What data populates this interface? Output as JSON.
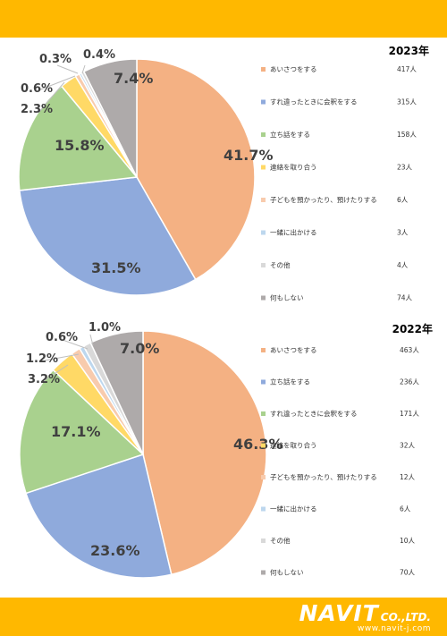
{
  "theme": {
    "accent": "#ffb800",
    "bg": "#ffffff"
  },
  "chart_data": [
    {
      "type": "pie",
      "title": "2023年",
      "slices": [
        {
          "label": "あいさつをする",
          "count": "417人",
          "percent": 41.7,
          "pct_label": "41.7%",
          "color": "#f4b183"
        },
        {
          "label": "すれ違ったときに会釈をする",
          "count": "315人",
          "percent": 31.5,
          "pct_label": "31.5%",
          "color": "#8faadc"
        },
        {
          "label": "立ち話をする",
          "count": "158人",
          "percent": 15.8,
          "pct_label": "15.8%",
          "color": "#a9d18e"
        },
        {
          "label": "連絡を取り合う",
          "count": "23人",
          "percent": 2.3,
          "pct_label": "2.3%",
          "color": "#ffd966"
        },
        {
          "label": "子どもを預かったり、預けたりする",
          "count": "6人",
          "percent": 0.6,
          "pct_label": "0.6%",
          "color": "#f8cbad"
        },
        {
          "label": "一緒に出かける",
          "count": "3人",
          "percent": 0.3,
          "pct_label": "0.3%",
          "color": "#bdd7ee"
        },
        {
          "label": "その他",
          "count": "4人",
          "percent": 0.4,
          "pct_label": "0.4%",
          "color": "#d9d9d9"
        },
        {
          "label": "何もしない",
          "count": "74人",
          "percent": 7.4,
          "pct_label": "7.4%",
          "color": "#aeaaaa"
        }
      ]
    },
    {
      "type": "pie",
      "title": "2022年",
      "slices": [
        {
          "label": "あいさつをする",
          "count": "463人",
          "percent": 46.3,
          "pct_label": "46.3%",
          "color": "#f4b183"
        },
        {
          "label": "立ち話をする",
          "count": "236人",
          "percent": 23.6,
          "pct_label": "23.6%",
          "color": "#8faadc"
        },
        {
          "label": "すれ違ったときに会釈をする",
          "count": "171人",
          "percent": 17.1,
          "pct_label": "17.1%",
          "color": "#a9d18e"
        },
        {
          "label": "連絡を取り合う",
          "count": "32人",
          "percent": 3.2,
          "pct_label": "3.2%",
          "color": "#ffd966"
        },
        {
          "label": "子どもを預かったり、預けたりする",
          "count": "12人",
          "percent": 1.2,
          "pct_label": "1.2%",
          "color": "#f8cbad"
        },
        {
          "label": "一緒に出かける",
          "count": "6人",
          "percent": 0.6,
          "pct_label": "0.6%",
          "color": "#bdd7ee"
        },
        {
          "label": "その他",
          "count": "10人",
          "percent": 1.0,
          "pct_label": "1.0%",
          "color": "#d9d9d9"
        },
        {
          "label": "何もしない",
          "count": "70人",
          "percent": 7.0,
          "pct_label": "7.0%",
          "color": "#aeaaaa"
        }
      ]
    }
  ],
  "footer": {
    "logo_main": "NAVIT",
    "logo_co": "CO.,LTD.",
    "logo_url": "www.navit-j.com"
  }
}
